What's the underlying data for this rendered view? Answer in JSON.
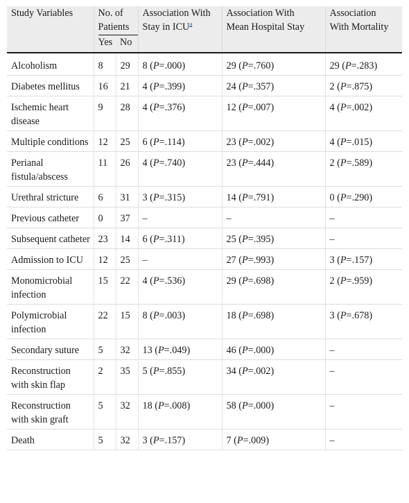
{
  "table": {
    "headers": {
      "study_variables": "Study Variables",
      "no_of": "No. of",
      "patients": "Patients",
      "yes": "Yes",
      "no": "No",
      "icu_line1": "Association With",
      "icu_line2": "Stay in ICU",
      "icu_footnote": "a",
      "hosp_line1": "Association With",
      "hosp_line2": "Mean Hospital Stay",
      "mort_line1": "Association",
      "mort_line2": "With Mortality"
    },
    "rows": [
      {
        "variable": "Alcoholism",
        "yes": "8",
        "no": "29",
        "icu": [
          "8",
          ".000"
        ],
        "hosp": [
          "29",
          ".760"
        ],
        "mort": [
          "29",
          ".283"
        ]
      },
      {
        "variable": "Diabetes mellitus",
        "yes": "16",
        "no": "21",
        "icu": [
          "4",
          ".399"
        ],
        "hosp": [
          "24",
          ".357"
        ],
        "mort": [
          "2",
          ".875"
        ]
      },
      {
        "variable": "Ischemic heart disease",
        "yes": "9",
        "no": "28",
        "icu": [
          "4",
          ".376"
        ],
        "hosp": [
          "12",
          ".007"
        ],
        "mort": [
          "4",
          ".002"
        ]
      },
      {
        "variable": "Multiple conditions",
        "yes": "12",
        "no": "25",
        "icu": [
          "6",
          ".114"
        ],
        "hosp": [
          "23",
          ".002"
        ],
        "mort": [
          "4",
          ".015"
        ]
      },
      {
        "variable": "Perianal fistula/abscess",
        "yes": "11",
        "no": "26",
        "icu": [
          "4",
          ".740"
        ],
        "hosp": [
          "23",
          ".444"
        ],
        "mort": [
          "2",
          ".589"
        ]
      },
      {
        "variable": "Urethral stricture",
        "yes": "6",
        "no": "31",
        "icu": [
          "3",
          ".315"
        ],
        "hosp": [
          "14",
          ".791"
        ],
        "mort": [
          "0",
          ".290"
        ]
      },
      {
        "variable": "Previous catheter",
        "yes": "0",
        "no": "37",
        "icu": "–",
        "hosp": "–",
        "mort": "–"
      },
      {
        "variable": "Subsequent catheter",
        "yes": "23",
        "no": "14",
        "icu": [
          "6",
          ".311"
        ],
        "hosp": [
          "25",
          ".395"
        ],
        "mort": "–"
      },
      {
        "variable": "Admission to ICU",
        "yes": "12",
        "no": "25",
        "icu": "–",
        "hosp": [
          "27",
          ".993"
        ],
        "mort": [
          "3",
          ".157"
        ]
      },
      {
        "variable": "Monomicrobial infection",
        "yes": "15",
        "no": "22",
        "icu": [
          "4",
          ".536"
        ],
        "hosp": [
          "29",
          ".698"
        ],
        "mort": [
          "2",
          ".959"
        ]
      },
      {
        "variable": "Polymicrobial infection",
        "yes": "22",
        "no": "15",
        "icu": [
          "8",
          ".003"
        ],
        "hosp": [
          "18",
          ".698"
        ],
        "mort": [
          "3",
          ".678"
        ]
      },
      {
        "variable": "Secondary suture",
        "yes": "5",
        "no": "32",
        "icu": [
          "13",
          ".049"
        ],
        "hosp": [
          "46",
          ".000"
        ],
        "mort": "–"
      },
      {
        "variable": "Reconstruction with skin flap",
        "yes": "2",
        "no": "35",
        "icu": [
          "5",
          ".855"
        ],
        "hosp": [
          "34",
          ".002"
        ],
        "mort": "–"
      },
      {
        "variable": "Reconstruction with skin graft",
        "yes": "5",
        "no": "32",
        "icu": [
          "18",
          ".008"
        ],
        "hosp": [
          "58",
          ".000"
        ],
        "mort": "–"
      },
      {
        "variable": "Death",
        "yes": "5",
        "no": "32",
        "icu": [
          "3",
          ".157"
        ],
        "hosp": [
          "7",
          ".009"
        ],
        "mort": "–"
      }
    ]
  }
}
